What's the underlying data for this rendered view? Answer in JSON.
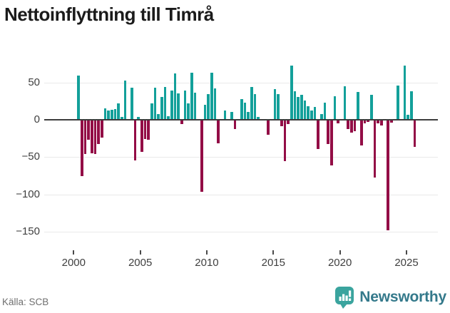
{
  "title": "Nettoinflyttning till Timrå",
  "source": "Källa: SCB",
  "branding": {
    "name": "Newsworthy",
    "logo_icon": "speech-bubble-bar-chart"
  },
  "colors": {
    "positive_bar": "#13a09a",
    "negative_bar": "#930d46",
    "zero_line": "#3d3d3d",
    "gridline": "#e9e9e9",
    "axis_text": "#404040",
    "title_text": "#1b1b1b",
    "source_text": "#6f6f6f",
    "brand_text": "#34798b",
    "brand_icon": "#3aa49e"
  },
  "chart_data": {
    "type": "bar",
    "title": "Nettoinflyttning till Timrå",
    "xlabel": "",
    "ylabel": "",
    "frequency": "quarterly",
    "start_year": 2000,
    "start_quarter": 1,
    "x_tick_years": [
      2000,
      2005,
      2010,
      2015,
      2020,
      2025
    ],
    "x_tick_labels": [
      "2000",
      "2005",
      "2010",
      "2015",
      "2020",
      "2025"
    ],
    "y_ticks": [
      50,
      0,
      -50,
      -100,
      -150
    ],
    "y_tick_labels": [
      "50",
      "0",
      "−50",
      "−100",
      "−150"
    ],
    "ylim": [
      -160,
      80
    ],
    "grid": "horizontal",
    "legend": "none",
    "values": [
      0,
      59,
      -75,
      -46,
      -27,
      -45,
      -46,
      -32,
      -24,
      15,
      12,
      13,
      14,
      22,
      4,
      53,
      0,
      43,
      -54,
      4,
      -43,
      -26,
      -27,
      22,
      43,
      8,
      31,
      44,
      5,
      39,
      62,
      35,
      -6,
      39,
      22,
      63,
      36,
      0,
      -96,
      20,
      34,
      63,
      42,
      -31,
      0,
      12,
      0,
      11,
      -12,
      0,
      28,
      23,
      11,
      44,
      34,
      4,
      0,
      0,
      -20,
      0,
      41,
      34,
      -9,
      -55,
      -6,
      73,
      38,
      31,
      33,
      26,
      18,
      12,
      17,
      -39,
      8,
      23,
      -32,
      -61,
      32,
      -5,
      0,
      45,
      -12,
      -17,
      -15,
      37,
      -34,
      -5,
      -3,
      33,
      -77,
      -5,
      -8,
      0,
      -148,
      -4,
      0,
      46,
      0,
      73,
      7,
      38,
      -36
    ]
  }
}
